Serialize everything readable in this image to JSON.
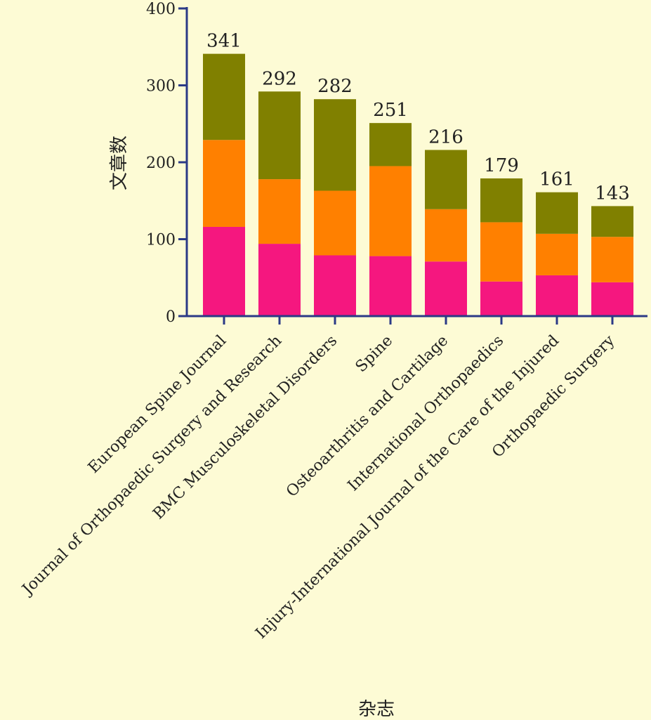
{
  "chart_data": {
    "type": "bar",
    "stacked": true,
    "categories": [
      "European Spine Journal",
      "Journal of Orthopaedic Surgery and Research",
      "BMC Musculoskeletal Disorders",
      "Spine",
      "Osteoarthritis and Cartilage",
      "International Orthopaedics",
      "Injury-International Journal of the Care of the Injured",
      "Orthopaedic Surgery"
    ],
    "totals": [
      341,
      292,
      282,
      251,
      216,
      179,
      161,
      143
    ],
    "series": [
      {
        "color": "#f5177f",
        "values": [
          116,
          94,
          79,
          78,
          71,
          45,
          53,
          44
        ]
      },
      {
        "color": "#ff8000",
        "values": [
          113,
          84,
          84,
          117,
          68,
          77,
          54,
          59
        ]
      },
      {
        "color": "#808000",
        "values": [
          112,
          114,
          119,
          56,
          77,
          57,
          54,
          40
        ]
      }
    ],
    "xlabel": "杂志",
    "ylabel": "文章数",
    "ylim": [
      0,
      400
    ],
    "yticks": [
      0,
      100,
      200,
      300,
      400
    ],
    "axis_color": "#2b3a86",
    "grid": false
  }
}
